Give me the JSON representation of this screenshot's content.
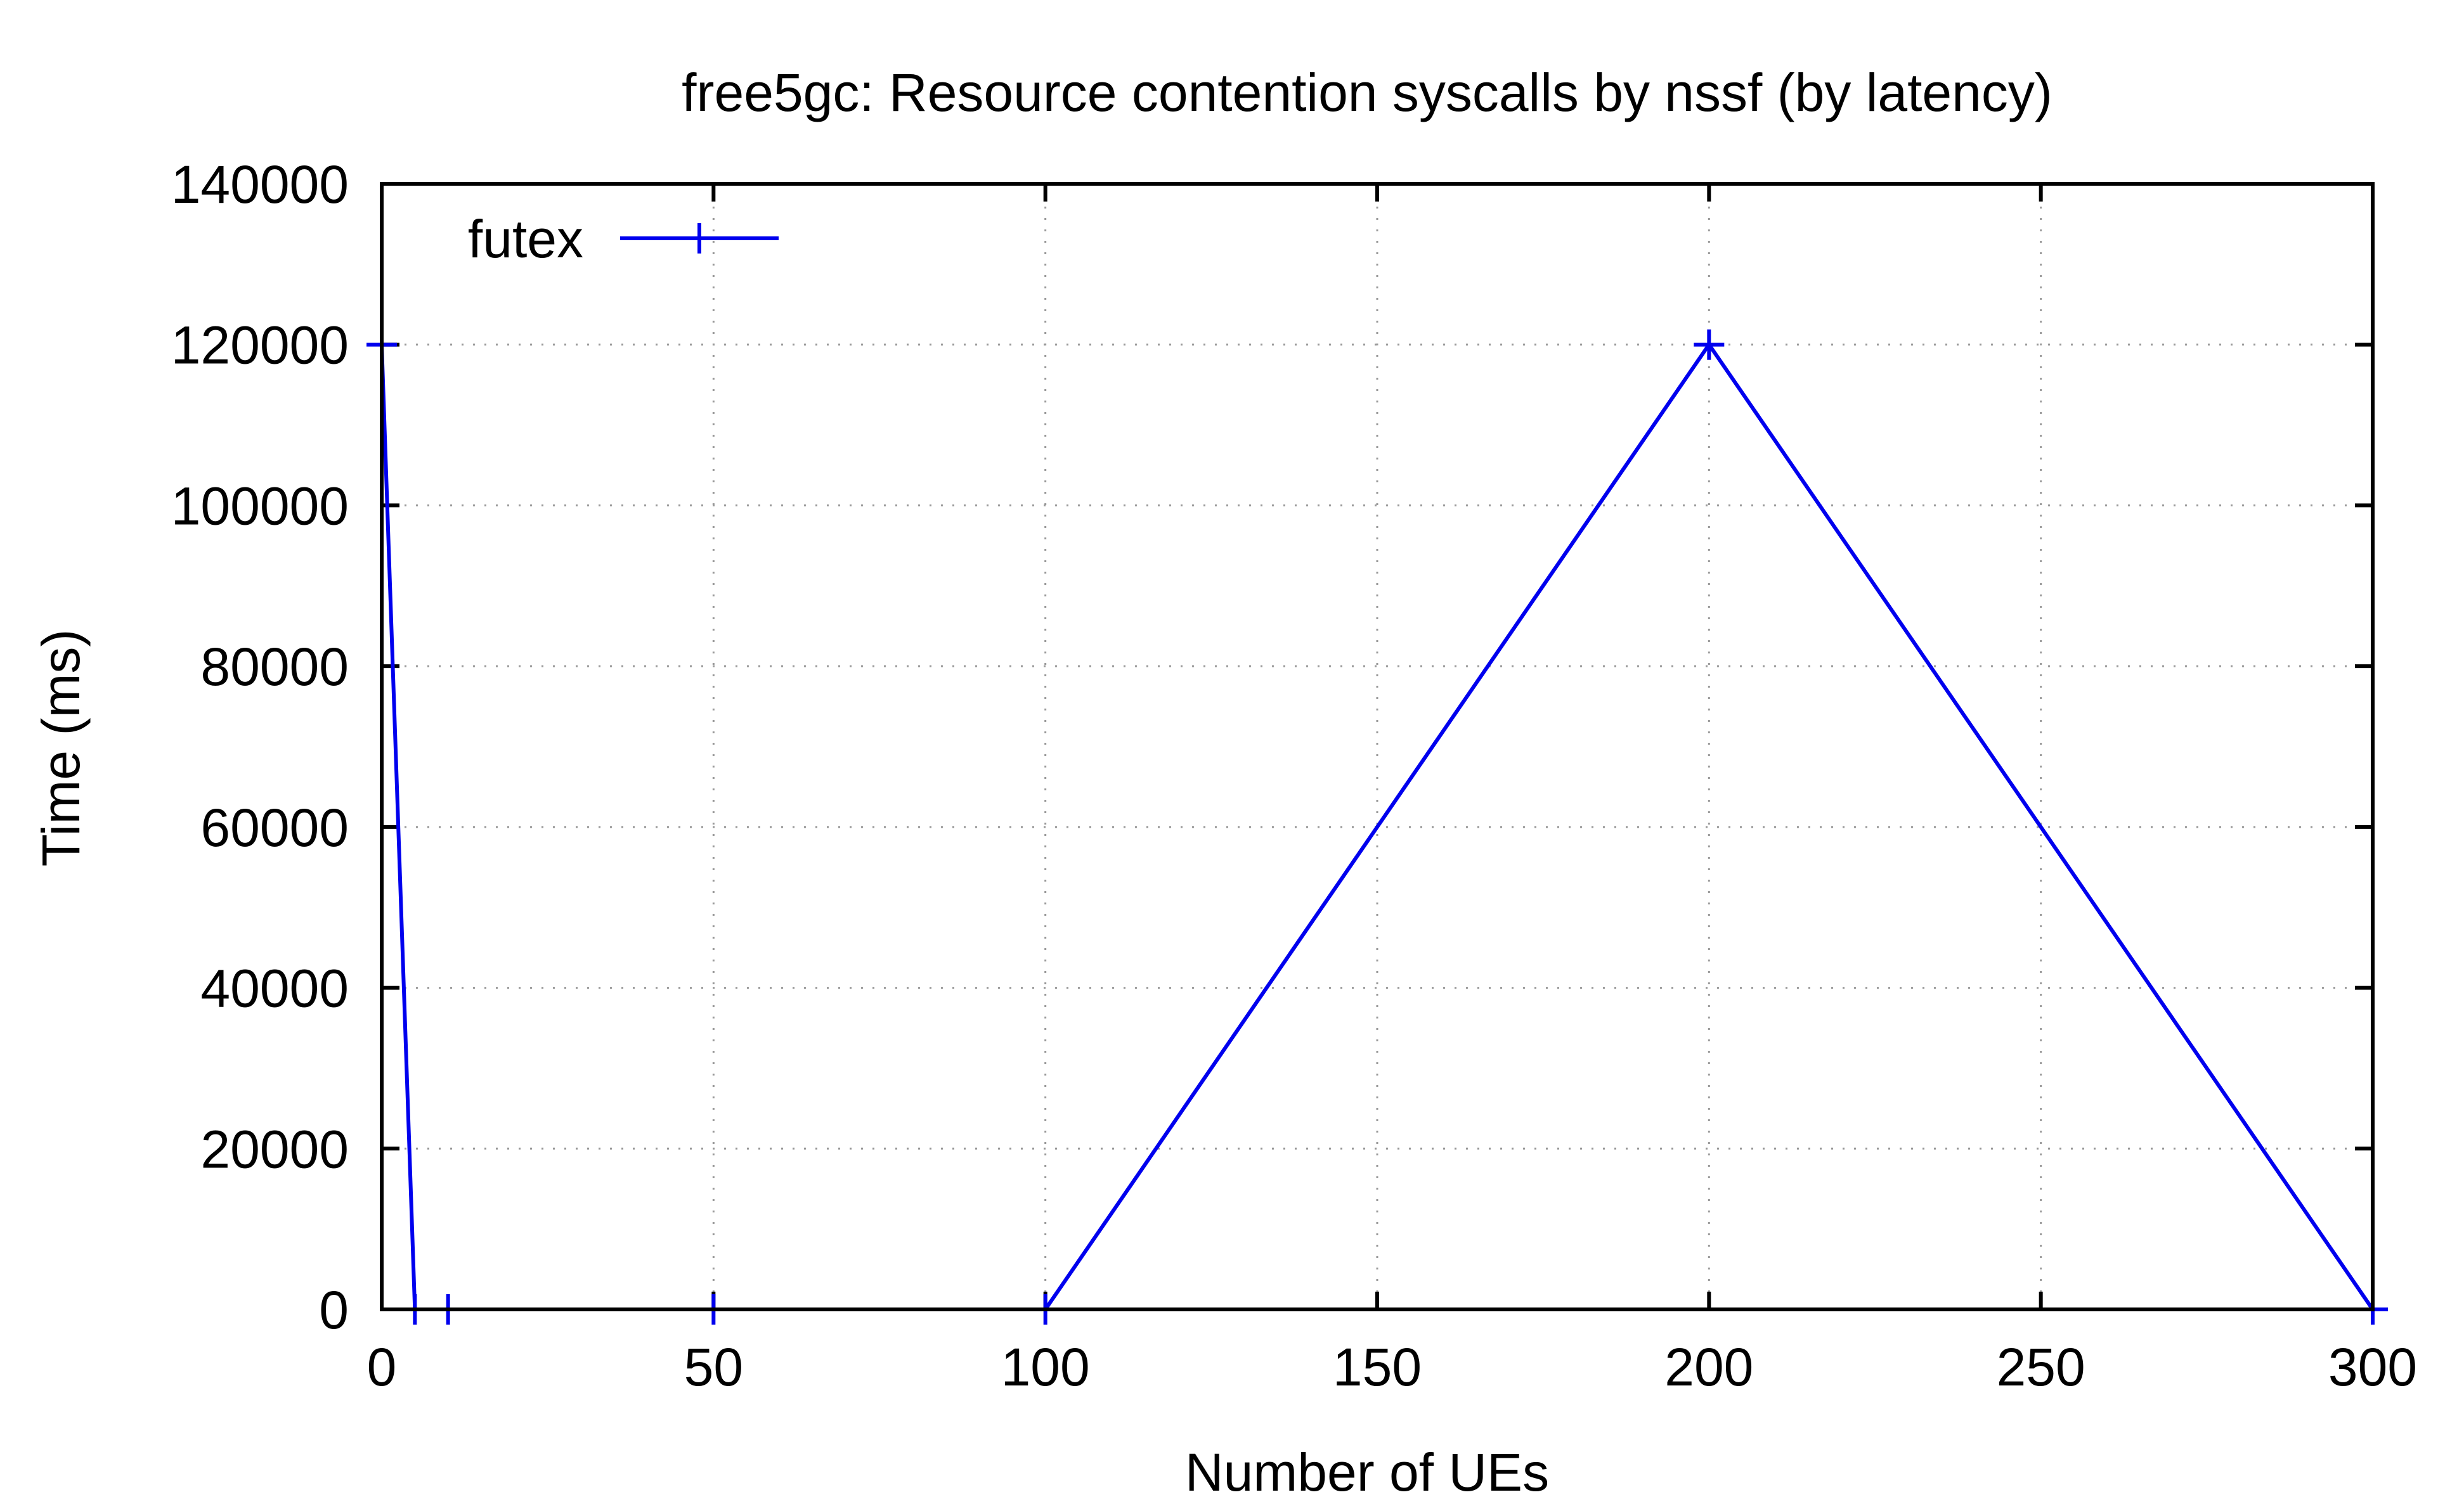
{
  "chart_data": {
    "type": "line",
    "title": "free5gc: Resource contention syscalls by nssf (by latency)",
    "xlabel": "Number of UEs",
    "ylabel": "Time (ms)",
    "xlim": [
      0,
      300
    ],
    "ylim": [
      0,
      140000
    ],
    "xticks": [
      0,
      50,
      100,
      150,
      200,
      250,
      300
    ],
    "yticks": [
      0,
      20000,
      40000,
      60000,
      80000,
      100000,
      120000,
      140000
    ],
    "xtick_labels": [
      "0",
      "50",
      "100",
      "150",
      "200",
      "250",
      "300"
    ],
    "ytick_labels": [
      "0",
      "20000",
      "40000",
      "60000",
      "80000",
      "100000",
      "120000",
      "140000"
    ],
    "grid": true,
    "legend_position": "top-left",
    "series": [
      {
        "name": "futex",
        "color": "#0000ee",
        "marker": "plus",
        "x": [
          0,
          5,
          10,
          50,
          100,
          200,
          300
        ],
        "y": [
          120000,
          0,
          0,
          0,
          0,
          120000,
          0
        ]
      }
    ]
  }
}
